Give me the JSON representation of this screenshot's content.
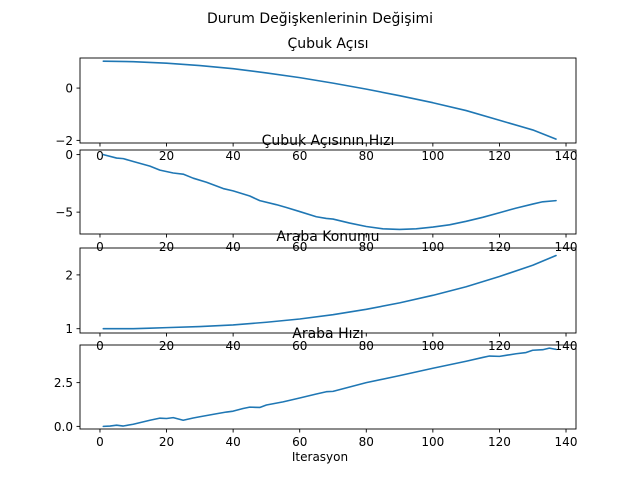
{
  "figure": {
    "suptitle": "Durum Değişkenlerinin Değişimi",
    "xlabel": "Iterasyon"
  },
  "colors": {
    "series": "#1f77b4",
    "background": "#ffffff",
    "axes": "#000000"
  },
  "chart_data": [
    {
      "type": "line",
      "title": "Çubuk Açısı",
      "xlabel": "",
      "ylabel": "",
      "xlim": [
        -6,
        143
      ],
      "ylim": [
        -2.1,
        1.15
      ],
      "xticks": [
        0,
        20,
        40,
        60,
        80,
        100,
        120,
        140
      ],
      "xtick_labels": [
        "0",
        "20",
        "40",
        "60",
        "80",
        "100",
        "120",
        "140"
      ],
      "yticks": [
        0,
        -2
      ],
      "ytick_labels": [
        "0",
        "−2"
      ],
      "grid": false,
      "series": [
        {
          "x": [
            1,
            10,
            20,
            30,
            40,
            50,
            60,
            70,
            80,
            90,
            100,
            110,
            120,
            130,
            137
          ],
          "y": [
            1.03,
            1.01,
            0.95,
            0.86,
            0.74,
            0.58,
            0.4,
            0.19,
            -0.04,
            -0.29,
            -0.56,
            -0.86,
            -1.23,
            -1.6,
            -1.95
          ]
        }
      ]
    },
    {
      "type": "line",
      "title": "Çubuk Açısının Hızı",
      "xlabel": "",
      "ylabel": "",
      "xlim": [
        -6,
        143
      ],
      "ylim": [
        -6.9,
        0.4
      ],
      "xticks": [
        0,
        20,
        40,
        60,
        80,
        100,
        120,
        140
      ],
      "xtick_labels": [
        "0",
        "20",
        "40",
        "60",
        "80",
        "100",
        "120",
        "140"
      ],
      "yticks": [
        0,
        -5
      ],
      "ytick_labels": [
        "0",
        "−5"
      ],
      "grid": false,
      "series": [
        {
          "x": [
            1,
            5,
            7,
            10,
            15,
            18,
            22,
            25,
            28,
            32,
            37,
            40,
            45,
            48,
            53,
            56,
            60,
            65,
            68,
            70,
            75,
            80,
            85,
            90,
            95,
            100,
            105,
            110,
            115,
            120,
            125,
            130,
            133,
            137
          ],
          "y": [
            0.0,
            -0.3,
            -0.35,
            -0.6,
            -1.0,
            -1.35,
            -1.6,
            -1.7,
            -2.05,
            -2.4,
            -2.95,
            -3.15,
            -3.6,
            -4.0,
            -4.35,
            -4.6,
            -4.95,
            -5.4,
            -5.55,
            -5.6,
            -5.95,
            -6.25,
            -6.45,
            -6.5,
            -6.45,
            -6.3,
            -6.1,
            -5.8,
            -5.45,
            -5.05,
            -4.65,
            -4.3,
            -4.1,
            -4.0
          ]
        }
      ]
    },
    {
      "type": "line",
      "title": "Araba Konumu",
      "xlabel": "",
      "ylabel": "",
      "xlim": [
        -6,
        143
      ],
      "ylim": [
        0.92,
        2.5
      ],
      "xticks": [
        0,
        20,
        40,
        60,
        80,
        100,
        120,
        140
      ],
      "xtick_labels": [
        "0",
        "20",
        "40",
        "60",
        "80",
        "100",
        "120",
        "140"
      ],
      "yticks": [
        1,
        2
      ],
      "ytick_labels": [
        "1",
        "2"
      ],
      "grid": false,
      "series": [
        {
          "x": [
            1,
            10,
            15,
            20,
            30,
            40,
            50,
            60,
            70,
            80,
            90,
            100,
            110,
            120,
            130,
            137
          ],
          "y": [
            1.0,
            1.0,
            1.01,
            1.02,
            1.04,
            1.07,
            1.12,
            1.18,
            1.26,
            1.36,
            1.48,
            1.62,
            1.78,
            1.97,
            2.18,
            2.36
          ]
        }
      ]
    },
    {
      "type": "line",
      "title": "Araba Hızı",
      "xlabel": "",
      "ylabel": "",
      "xlim": [
        -6,
        143
      ],
      "ylim": [
        -0.15,
        4.65
      ],
      "xticks": [
        0,
        20,
        40,
        60,
        80,
        100,
        120,
        140
      ],
      "xtick_labels": [
        "0",
        "20",
        "40",
        "60",
        "80",
        "100",
        "120",
        "140"
      ],
      "yticks": [
        0.0,
        2.5
      ],
      "ytick_labels": [
        "0.0",
        "2.5"
      ],
      "grid": false,
      "series": [
        {
          "x": [
            1,
            3,
            5,
            7,
            10,
            15,
            18,
            20,
            22,
            25,
            28,
            30,
            35,
            38,
            40,
            43,
            45,
            48,
            50,
            55,
            60,
            65,
            68,
            70,
            80,
            90,
            100,
            110,
            115,
            117,
            120,
            122,
            125,
            128,
            130,
            133,
            135,
            137
          ],
          "y": [
            0.0,
            0.02,
            0.07,
            0.02,
            0.12,
            0.35,
            0.47,
            0.45,
            0.5,
            0.35,
            0.48,
            0.55,
            0.72,
            0.82,
            0.87,
            1.02,
            1.1,
            1.08,
            1.22,
            1.4,
            1.62,
            1.85,
            1.98,
            2.0,
            2.5,
            2.9,
            3.32,
            3.72,
            3.94,
            4.02,
            4.0,
            4.06,
            4.15,
            4.22,
            4.35,
            4.38,
            4.47,
            4.4
          ]
        }
      ]
    }
  ]
}
